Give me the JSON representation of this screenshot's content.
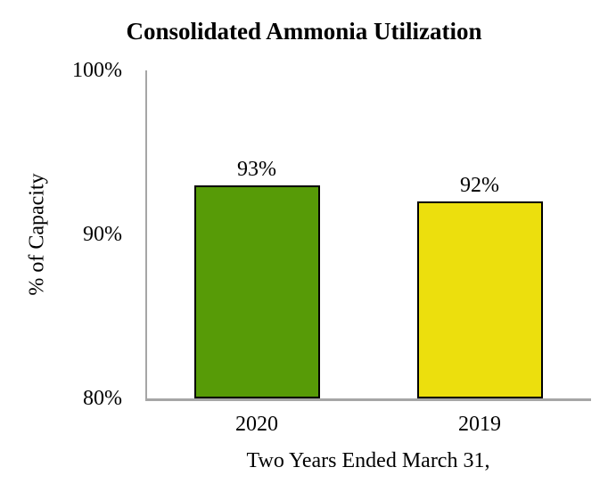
{
  "colors": {
    "bar_2020": "#579B07",
    "bar_2019": "#ECDF0D",
    "bar_border": "#000000",
    "axis_line": "#A6A6A6",
    "text": "#000000",
    "background": "#FFFFFF"
  },
  "chart_data": {
    "type": "bar",
    "title": "Consolidated Ammonia Utilization",
    "xlabel": "Two Years Ended March 31,",
    "ylabel": "% of Capacity",
    "categories": [
      "2020",
      "2019"
    ],
    "values": [
      93,
      92
    ],
    "value_labels": [
      "93%",
      "92%"
    ],
    "bar_colors": [
      "#579B07",
      "#ECDF0D"
    ],
    "ylim": [
      80,
      100
    ],
    "yticks": [
      80,
      90,
      100
    ],
    "ytick_labels": [
      "80%",
      "90%",
      "100%"
    ],
    "grid": false,
    "legend": false
  }
}
